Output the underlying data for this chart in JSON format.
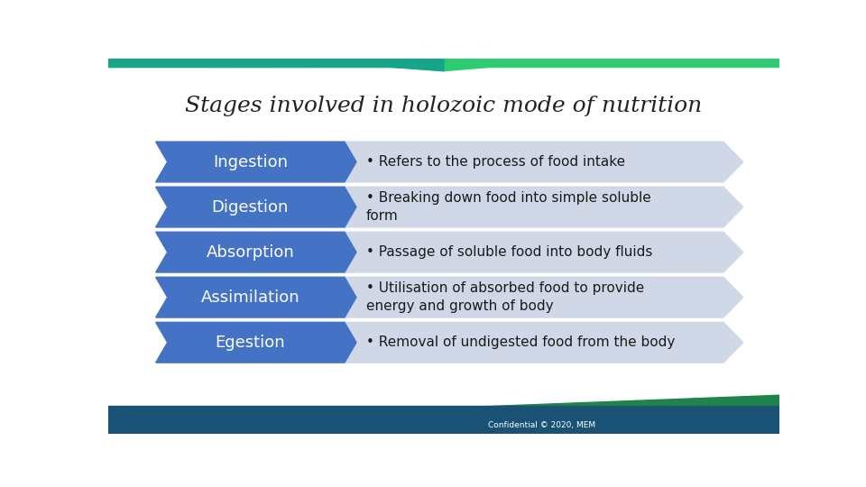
{
  "title": "Stages involved in holozoic mode of nutrition",
  "title_fontsize": 18,
  "title_color": "#222222",
  "background_color": "#ffffff",
  "stages": [
    {
      "label": "Ingestion",
      "description": "Refers to the process of food intake",
      "label_color": "#ffffff",
      "box_color": "#4472C4",
      "arrow_color": "#D0D8E8"
    },
    {
      "label": "Digestion",
      "description": "Breaking down food into simple soluble\nform",
      "label_color": "#ffffff",
      "box_color": "#4472C4",
      "arrow_color": "#D0D8E8"
    },
    {
      "label": "Absorption",
      "description": "Passage of soluble food into body fluids",
      "label_color": "#ffffff",
      "box_color": "#4472C4",
      "arrow_color": "#D0D8E8"
    },
    {
      "label": "Assimilation",
      "description": "Utilisation of absorbed food to provide\nenergy and growth of body",
      "label_color": "#ffffff",
      "box_color": "#4472C4",
      "arrow_color": "#D0D8E8"
    },
    {
      "label": "Egestion",
      "description": "Removal of undigested food from the body",
      "label_color": "#ffffff",
      "box_color": "#4472C4",
      "arrow_color": "#D0D8E8"
    }
  ],
  "footer_blue": "#1A5276",
  "footer_green": "#1E8449",
  "footer_text": "Confidential © 2020, MEM",
  "footer_text_color": "#ffffff",
  "header_bar_green": "#2ECC71",
  "header_bar_blue": "#1A5276",
  "header_bar_teal": "#17A589"
}
